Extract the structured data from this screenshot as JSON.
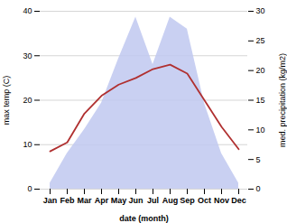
{
  "chart_data": {
    "type": "line",
    "categories": [
      "Jan",
      "Feb",
      "Mar",
      "Apr",
      "May",
      "Jun",
      "Jul",
      "Aug",
      "Sep",
      "Oct",
      "Nov",
      "Dec"
    ],
    "xlabel": "date (month)",
    "ylabel": "max temp (C)",
    "y2label": "med. precipitation (kg/m2)",
    "series": [
      {
        "type": "area",
        "axis": "y2",
        "color": "#c0c8f0",
        "values": [
          1.0,
          6.0,
          10.0,
          14.5,
          22.0,
          29.0,
          21.0,
          29.0,
          27.0,
          14.5,
          6.0,
          1.0
        ]
      },
      {
        "type": "line",
        "color": "#b03030",
        "values": [
          8.5,
          10.5,
          17.0,
          21.0,
          23.5,
          25.0,
          27.0,
          28.0,
          26.0,
          20.0,
          14.0,
          9.0
        ]
      }
    ],
    "ylim": [
      0,
      40
    ],
    "yticks": [
      0,
      10,
      20,
      30,
      40
    ],
    "y2lim": [
      0,
      30
    ],
    "y2ticks": [
      0,
      5,
      10,
      15,
      20,
      25,
      30
    ],
    "grid": true
  }
}
